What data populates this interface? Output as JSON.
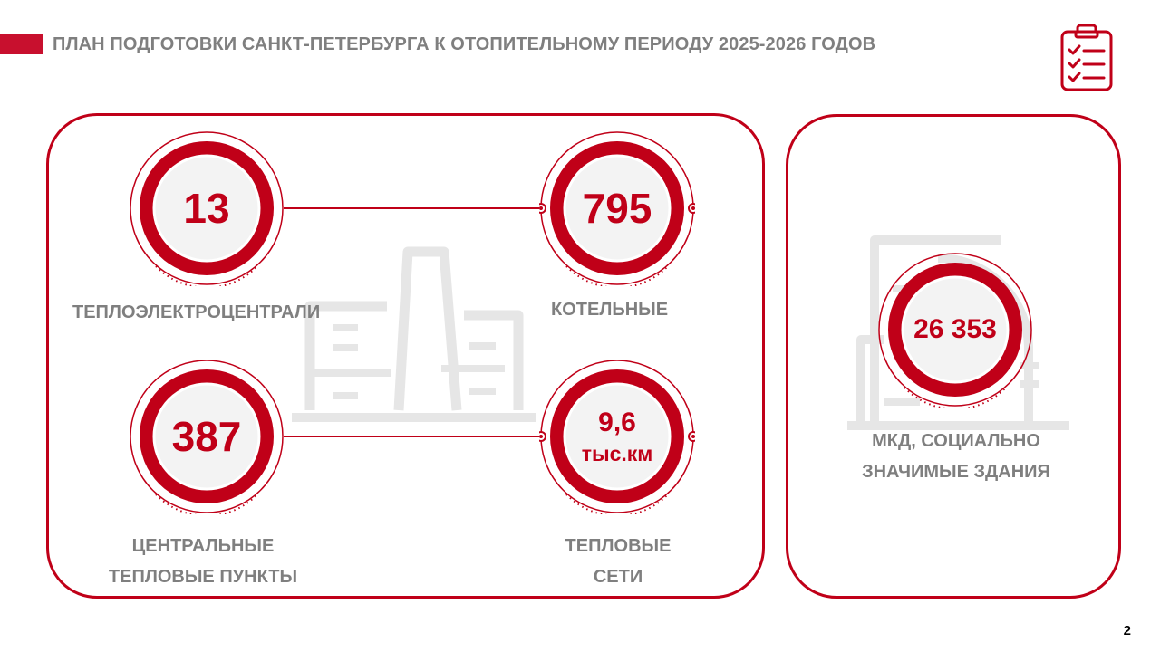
{
  "header": {
    "title": "ПЛАН ПОДГОТОВКИ САНКТ-ПЕТЕРБУРГА К ОТОПИТЕЛЬНОМУ ПЕРИОДУ 2025-2026 ГОДОВ",
    "icon": "clipboard-checklist-icon"
  },
  "stats": {
    "chp": {
      "value": "13",
      "label": "ТЕПЛОЭЛЕКТРОЦЕНТРАЛИ"
    },
    "boilers": {
      "value": "795",
      "label": "КОТЕЛЬНЫЕ"
    },
    "substations": {
      "value": "387",
      "label_line1": "ЦЕНТРАЛЬНЫЕ",
      "label_line2": "ТЕПЛОВЫЕ ПУНКТЫ"
    },
    "networks": {
      "value": "9,6",
      "unit": "тыс.км",
      "label_line1": "ТЕПЛОВЫЕ",
      "label_line2": "СЕТИ"
    },
    "buildings": {
      "value": "26 353",
      "label_line1": "МКД, СОЦИАЛЬНО",
      "label_line2": "ЗНАЧИМЫЕ ЗДАНИЯ"
    }
  },
  "footer": {
    "page_number": "2"
  },
  "colors": {
    "accent": "#c00018",
    "text_gray": "#7f7f7f",
    "illustration": "#e8e8e8"
  }
}
